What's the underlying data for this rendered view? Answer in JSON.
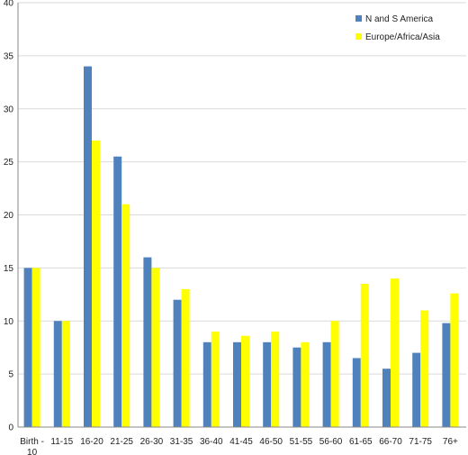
{
  "chart_data": {
    "type": "bar",
    "title": "",
    "xlabel": "",
    "ylabel": "",
    "ylim": [
      0,
      40
    ],
    "yticks": [
      0,
      5,
      10,
      15,
      20,
      25,
      30,
      35,
      40
    ],
    "grid": true,
    "legend_position": "top-right",
    "categories": [
      "Birth - 10",
      "11-15",
      "16-20",
      "21-25",
      "26-30",
      "31-35",
      "36-40",
      "41-45",
      "46-50",
      "51-55",
      "56-60",
      "61-65",
      "66-70",
      "71-75",
      "76+"
    ],
    "category_lines": [
      [
        "Birth -",
        "10"
      ],
      [
        "11-15"
      ],
      [
        "16-20"
      ],
      [
        "21-25"
      ],
      [
        "26-30"
      ],
      [
        "31-35"
      ],
      [
        "36-40"
      ],
      [
        "41-45"
      ],
      [
        "46-50"
      ],
      [
        "51-55"
      ],
      [
        "56-60"
      ],
      [
        "61-65"
      ],
      [
        "66-70"
      ],
      [
        "71-75"
      ],
      [
        "76+"
      ]
    ],
    "series": [
      {
        "name": "N and S America",
        "color": "#4f81bd",
        "values": [
          15,
          10,
          34,
          25.5,
          16,
          12,
          8,
          8,
          8,
          7.5,
          8,
          6.5,
          5.5,
          7,
          9.8
        ]
      },
      {
        "name": "Europe/Africa/Asia",
        "color": "#ffff00",
        "values": [
          15,
          10,
          27,
          21,
          15,
          13,
          9,
          8.6,
          9,
          8,
          10,
          13.5,
          14,
          11,
          12.6
        ]
      }
    ]
  }
}
